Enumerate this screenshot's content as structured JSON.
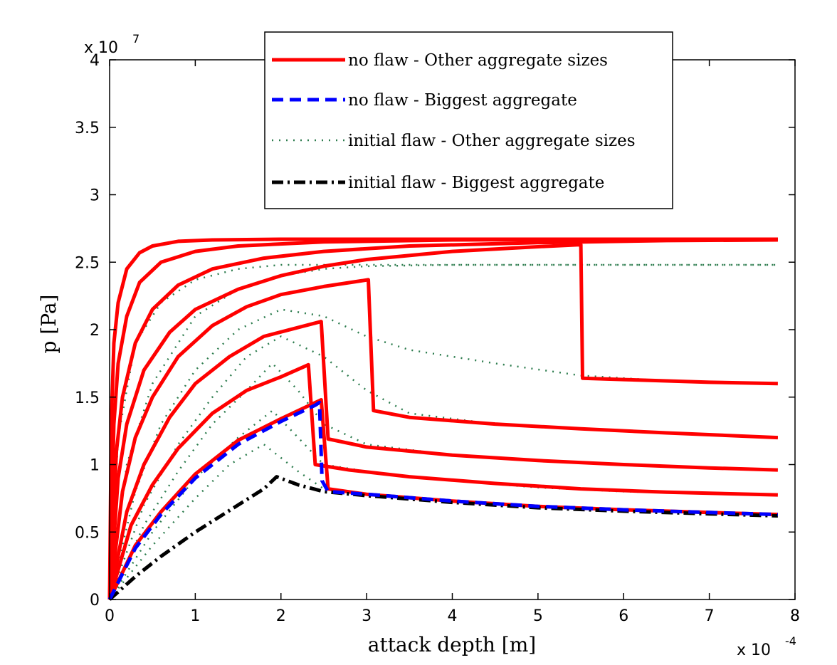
{
  "chart_data": {
    "type": "line",
    "xlabel": "attack depth [m]",
    "ylabel": "p [Pa]",
    "x_exponent_label": {
      "base": "x 10",
      "exp": "-4"
    },
    "y_exponent_label": {
      "base": "x 10",
      "exp": "7"
    },
    "xlim": [
      0,
      8
    ],
    "ylim": [
      0,
      4
    ],
    "x_unit_multiplier": 0.0001,
    "y_unit_multiplier": 10000000.0,
    "xticks": [
      "0",
      "1",
      "2",
      "3",
      "4",
      "5",
      "6",
      "7",
      "8"
    ],
    "yticks": [
      "0",
      "0.5",
      "1",
      "1.5",
      "2",
      "2.5",
      "3",
      "3.5",
      "4"
    ],
    "grid": false,
    "legend_position": "top",
    "colors": {
      "no_flaw_other": "#ff0000",
      "no_flaw_biggest": "#0000ff",
      "initial_flaw_other": "#2e7d4f",
      "initial_flaw_biggest": "#000000"
    },
    "legend": [
      {
        "label": "no flaw - Other aggregate sizes",
        "style": "solid",
        "color": "#ff0000"
      },
      {
        "label": "no flaw - Biggest aggregate",
        "style": "dashed",
        "color": "#0000ff"
      },
      {
        "label": "initial flaw - Other aggregate sizes",
        "style": "dotted",
        "color": "#2e7d4f"
      },
      {
        "label": "initial flaw - Biggest aggregate",
        "style": "dashdot",
        "color": "#000000"
      }
    ],
    "series": [
      {
        "group": "no_flaw_other",
        "style": "solid",
        "color": "#ff0000",
        "points": [
          [
            0,
            0
          ],
          [
            0.02,
            1.3
          ],
          [
            0.05,
            1.9
          ],
          [
            0.1,
            2.2
          ],
          [
            0.2,
            2.45
          ],
          [
            0.35,
            2.57
          ],
          [
            0.5,
            2.62
          ],
          [
            0.8,
            2.655
          ],
          [
            1.2,
            2.665
          ],
          [
            2,
            2.67
          ],
          [
            4,
            2.67
          ],
          [
            7.8,
            2.67
          ]
        ]
      },
      {
        "group": "no_flaw_other",
        "style": "solid",
        "color": "#ff0000",
        "points": [
          [
            0,
            0
          ],
          [
            0.05,
            1.3
          ],
          [
            0.1,
            1.75
          ],
          [
            0.2,
            2.1
          ],
          [
            0.35,
            2.35
          ],
          [
            0.6,
            2.5
          ],
          [
            1,
            2.58
          ],
          [
            1.5,
            2.62
          ],
          [
            2.5,
            2.65
          ],
          [
            4,
            2.665
          ],
          [
            6,
            2.67
          ],
          [
            7.8,
            2.67
          ]
        ]
      },
      {
        "group": "no_flaw_other",
        "style": "solid",
        "color": "#ff0000",
        "points": [
          [
            0,
            0
          ],
          [
            0.08,
            1.1
          ],
          [
            0.15,
            1.5
          ],
          [
            0.3,
            1.9
          ],
          [
            0.5,
            2.15
          ],
          [
            0.8,
            2.33
          ],
          [
            1.2,
            2.45
          ],
          [
            1.8,
            2.53
          ],
          [
            2.5,
            2.58
          ],
          [
            3.5,
            2.62
          ],
          [
            5,
            2.645
          ],
          [
            6.5,
            2.66
          ],
          [
            7.8,
            2.665
          ]
        ]
      },
      {
        "group": "no_flaw_other",
        "style": "solid",
        "color": "#ff0000",
        "points": [
          [
            0,
            0
          ],
          [
            0.1,
            0.9
          ],
          [
            0.2,
            1.3
          ],
          [
            0.4,
            1.7
          ],
          [
            0.7,
            1.98
          ],
          [
            1,
            2.15
          ],
          [
            1.5,
            2.3
          ],
          [
            2,
            2.4
          ],
          [
            2.5,
            2.47
          ],
          [
            3,
            2.52
          ],
          [
            4,
            2.58
          ],
          [
            5,
            2.615
          ],
          [
            5.5,
            2.63
          ],
          [
            5.52,
            1.64
          ],
          [
            6,
            1.63
          ],
          [
            7,
            1.61
          ],
          [
            7.8,
            1.6
          ]
        ]
      },
      {
        "group": "no_flaw_other",
        "style": "solid",
        "color": "#ff0000",
        "points": [
          [
            0,
            0
          ],
          [
            0.15,
            0.8
          ],
          [
            0.3,
            1.2
          ],
          [
            0.5,
            1.5
          ],
          [
            0.8,
            1.8
          ],
          [
            1.2,
            2.03
          ],
          [
            1.6,
            2.17
          ],
          [
            2,
            2.26
          ],
          [
            2.5,
            2.32
          ],
          [
            3.02,
            2.37
          ],
          [
            3.08,
            1.4
          ],
          [
            3.5,
            1.35
          ],
          [
            4.5,
            1.3
          ],
          [
            5.5,
            1.265
          ],
          [
            6.5,
            1.235
          ],
          [
            7.8,
            1.2
          ]
        ]
      },
      {
        "group": "no_flaw_other",
        "style": "solid",
        "color": "#ff0000",
        "points": [
          [
            0,
            0
          ],
          [
            0.2,
            0.65
          ],
          [
            0.4,
            1.0
          ],
          [
            0.7,
            1.35
          ],
          [
            1,
            1.6
          ],
          [
            1.4,
            1.8
          ],
          [
            1.8,
            1.95
          ],
          [
            2.47,
            2.06
          ],
          [
            2.55,
            1.19
          ],
          [
            3,
            1.13
          ],
          [
            4,
            1.07
          ],
          [
            5,
            1.03
          ],
          [
            6,
            1.0
          ],
          [
            7,
            0.975
          ],
          [
            7.8,
            0.96
          ]
        ]
      },
      {
        "group": "no_flaw_other",
        "style": "solid",
        "color": "#ff0000",
        "points": [
          [
            0,
            0
          ],
          [
            0.25,
            0.55
          ],
          [
            0.5,
            0.85
          ],
          [
            0.8,
            1.12
          ],
          [
            1.2,
            1.38
          ],
          [
            1.6,
            1.55
          ],
          [
            2.0,
            1.65
          ],
          [
            2.32,
            1.74
          ],
          [
            2.4,
            1.0
          ],
          [
            2.8,
            0.96
          ],
          [
            3.5,
            0.91
          ],
          [
            4.5,
            0.86
          ],
          [
            5.5,
            0.82
          ],
          [
            6.5,
            0.795
          ],
          [
            7.8,
            0.775
          ]
        ]
      },
      {
        "group": "no_flaw_other",
        "style": "solid",
        "color": "#ff0000",
        "points": [
          [
            0,
            0
          ],
          [
            0.3,
            0.4
          ],
          [
            0.6,
            0.65
          ],
          [
            1,
            0.93
          ],
          [
            1.5,
            1.18
          ],
          [
            2,
            1.34
          ],
          [
            2.47,
            1.48
          ],
          [
            2.55,
            0.82
          ],
          [
            3,
            0.78
          ],
          [
            4,
            0.73
          ],
          [
            5,
            0.69
          ],
          [
            6,
            0.665
          ],
          [
            7,
            0.645
          ],
          [
            7.8,
            0.63
          ]
        ]
      },
      {
        "group": "no_flaw_biggest",
        "style": "dashed",
        "color": "#0000ff",
        "points": [
          [
            0,
            0
          ],
          [
            0.3,
            0.38
          ],
          [
            0.6,
            0.63
          ],
          [
            1,
            0.9
          ],
          [
            1.5,
            1.15
          ],
          [
            2,
            1.32
          ],
          [
            2.4,
            1.44
          ],
          [
            2.45,
            1.46
          ],
          [
            2.48,
            0.88
          ],
          [
            2.55,
            0.8
          ],
          [
            3,
            0.78
          ],
          [
            4,
            0.73
          ],
          [
            5,
            0.69
          ],
          [
            6,
            0.665
          ],
          [
            7,
            0.645
          ],
          [
            7.8,
            0.63
          ]
        ]
      },
      {
        "group": "initial_flaw_other",
        "style": "dotted",
        "color": "#2e7d4f",
        "points": [
          [
            0,
            0
          ],
          [
            0.1,
            1.2
          ],
          [
            0.3,
            1.9
          ],
          [
            0.6,
            2.2
          ],
          [
            1,
            2.37
          ],
          [
            1.5,
            2.45
          ],
          [
            2,
            2.48
          ],
          [
            3,
            2.48
          ],
          [
            5,
            2.48
          ],
          [
            7.8,
            2.48
          ]
        ]
      },
      {
        "group": "initial_flaw_other",
        "style": "dotted",
        "color": "#2e7d4f",
        "points": [
          [
            0,
            0
          ],
          [
            0.2,
            1.0
          ],
          [
            0.5,
            1.6
          ],
          [
            1,
            2.1
          ],
          [
            1.5,
            2.3
          ],
          [
            2,
            2.4
          ],
          [
            2.5,
            2.45
          ],
          [
            3,
            2.47
          ],
          [
            4,
            2.48
          ],
          [
            5.5,
            2.48
          ],
          [
            7.8,
            2.48
          ]
        ]
      },
      {
        "group": "initial_flaw_other",
        "style": "dotted",
        "color": "#2e7d4f",
        "points": [
          [
            0,
            0
          ],
          [
            0.3,
            0.8
          ],
          [
            0.6,
            1.3
          ],
          [
            1,
            1.7
          ],
          [
            1.5,
            2.0
          ],
          [
            2,
            2.15
          ],
          [
            2.5,
            2.1
          ],
          [
            3,
            1.95
          ],
          [
            3.5,
            1.85
          ],
          [
            4.5,
            1.75
          ],
          [
            5.5,
            1.66
          ],
          [
            6.5,
            1.62
          ],
          [
            7.8,
            1.6
          ]
        ]
      },
      {
        "group": "initial_flaw_other",
        "style": "dotted",
        "color": "#2e7d4f",
        "points": [
          [
            0,
            0
          ],
          [
            0.4,
            0.7
          ],
          [
            0.8,
            1.15
          ],
          [
            1.2,
            1.5
          ],
          [
            1.6,
            1.8
          ],
          [
            2.0,
            1.95
          ],
          [
            2.5,
            1.8
          ],
          [
            3,
            1.55
          ],
          [
            3.5,
            1.38
          ],
          [
            4.5,
            1.3
          ],
          [
            5.5,
            1.26
          ],
          [
            6.5,
            1.23
          ],
          [
            7.8,
            1.2
          ]
        ]
      },
      {
        "group": "initial_flaw_other",
        "style": "dotted",
        "color": "#2e7d4f",
        "points": [
          [
            0,
            0
          ],
          [
            0.4,
            0.55
          ],
          [
            0.8,
            0.95
          ],
          [
            1.2,
            1.3
          ],
          [
            1.6,
            1.55
          ],
          [
            1.9,
            1.75
          ],
          [
            2.2,
            1.55
          ],
          [
            2.5,
            1.3
          ],
          [
            3,
            1.15
          ],
          [
            4,
            1.07
          ],
          [
            5,
            1.03
          ],
          [
            6,
            1.0
          ],
          [
            7,
            0.975
          ],
          [
            7.8,
            0.96
          ]
        ]
      },
      {
        "group": "initial_flaw_other",
        "style": "dotted",
        "color": "#2e7d4f",
        "points": [
          [
            0,
            0
          ],
          [
            0.5,
            0.5
          ],
          [
            1,
            0.9
          ],
          [
            1.5,
            1.2
          ],
          [
            1.9,
            1.4
          ],
          [
            2.2,
            1.2
          ],
          [
            2.5,
            1.0
          ],
          [
            3,
            0.95
          ],
          [
            4,
            0.88
          ],
          [
            5,
            0.83
          ],
          [
            6,
            0.8
          ],
          [
            7,
            0.785
          ],
          [
            7.8,
            0.775
          ]
        ]
      },
      {
        "group": "initial_flaw_other",
        "style": "dotted",
        "color": "#2e7d4f",
        "points": [
          [
            0,
            0
          ],
          [
            0.5,
            0.4
          ],
          [
            1,
            0.75
          ],
          [
            1.4,
            1.0
          ],
          [
            1.8,
            1.15
          ],
          [
            2.2,
            0.95
          ],
          [
            2.5,
            0.82
          ],
          [
            3,
            0.78
          ],
          [
            4,
            0.73
          ],
          [
            5,
            0.69
          ],
          [
            6,
            0.665
          ],
          [
            7,
            0.645
          ],
          [
            7.8,
            0.63
          ]
        ]
      },
      {
        "group": "initial_flaw_biggest",
        "style": "dashdot",
        "color": "#000000",
        "points": [
          [
            0,
            0
          ],
          [
            0.3,
            0.17
          ],
          [
            0.6,
            0.32
          ],
          [
            1,
            0.5
          ],
          [
            1.4,
            0.66
          ],
          [
            1.8,
            0.82
          ],
          [
            1.95,
            0.91
          ],
          [
            2.2,
            0.85
          ],
          [
            2.5,
            0.8
          ],
          [
            3,
            0.77
          ],
          [
            4,
            0.72
          ],
          [
            5,
            0.68
          ],
          [
            6,
            0.655
          ],
          [
            7,
            0.635
          ],
          [
            7.8,
            0.62
          ]
        ]
      }
    ]
  }
}
